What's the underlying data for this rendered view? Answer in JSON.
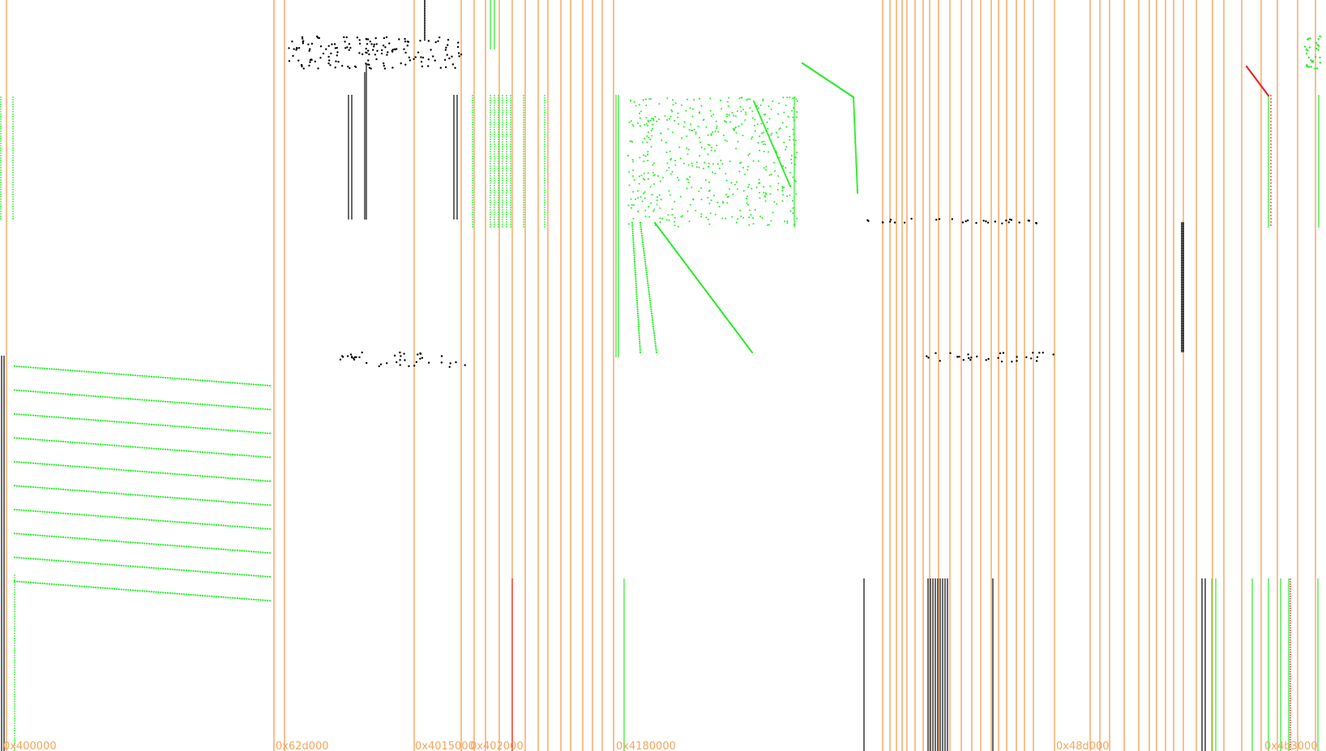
{
  "chart_data": {
    "type": "scatter",
    "title": "",
    "xlabel": "",
    "ylabel": "",
    "grid": false,
    "legend": "none",
    "colors": {
      "boundary": "#f7a55d",
      "read": "#000000",
      "write": "#22ee22",
      "exec": "#ee2222"
    },
    "segment_labels": [
      "0x400000",
      "0x62d000",
      "0x4015000",
      "0x402000",
      "0x4180000",
      "0x48d000",
      "0x4b3000"
    ]
  }
}
